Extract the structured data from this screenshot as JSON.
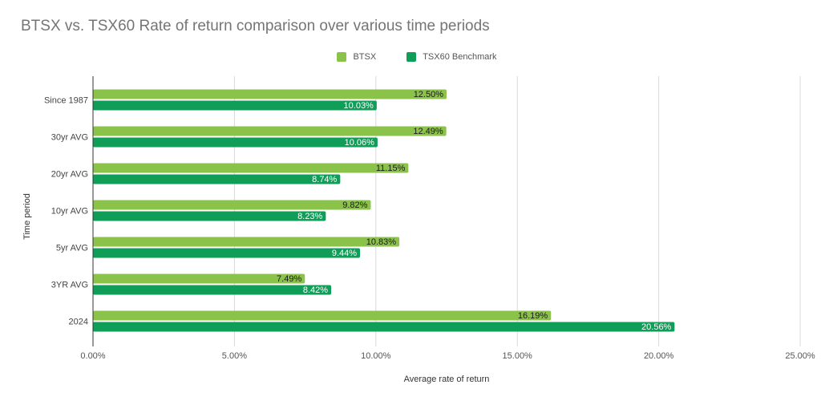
{
  "chart_data": {
    "type": "bar",
    "orientation": "horizontal",
    "title": "BTSX vs. TSX60 Rate of return comparison over various time periods",
    "xlabel": "Average rate of return",
    "ylabel": "Time period",
    "categories": [
      "Since 1987",
      "30yr AVG",
      "20yr AVG",
      "10yr AVG",
      "5yr AVG",
      "3YR AVG",
      "2024"
    ],
    "series": [
      {
        "name": "BTSX",
        "color": "#8bc34a",
        "values": [
          12.5,
          12.49,
          11.15,
          9.82,
          10.83,
          7.49,
          16.19
        ],
        "labels": [
          "12.50%",
          "12.49%",
          "11.15%",
          "9.82%",
          "10.83%",
          "7.49%",
          "16.19%"
        ]
      },
      {
        "name": "TSX60 Benchmark",
        "color": "#0f9d58",
        "values": [
          10.03,
          10.06,
          8.74,
          8.23,
          9.44,
          8.42,
          20.56
        ],
        "labels": [
          "10.03%",
          "10.06%",
          "8.74%",
          "8.23%",
          "9.44%",
          "8.42%",
          "20.56%"
        ]
      }
    ],
    "xlim": [
      0,
      25
    ],
    "xticks": [
      "0.00%",
      "5.00%",
      "10.00%",
      "15.00%",
      "20.00%",
      "25.00%"
    ],
    "grid": true,
    "legend_position": "top-center"
  }
}
